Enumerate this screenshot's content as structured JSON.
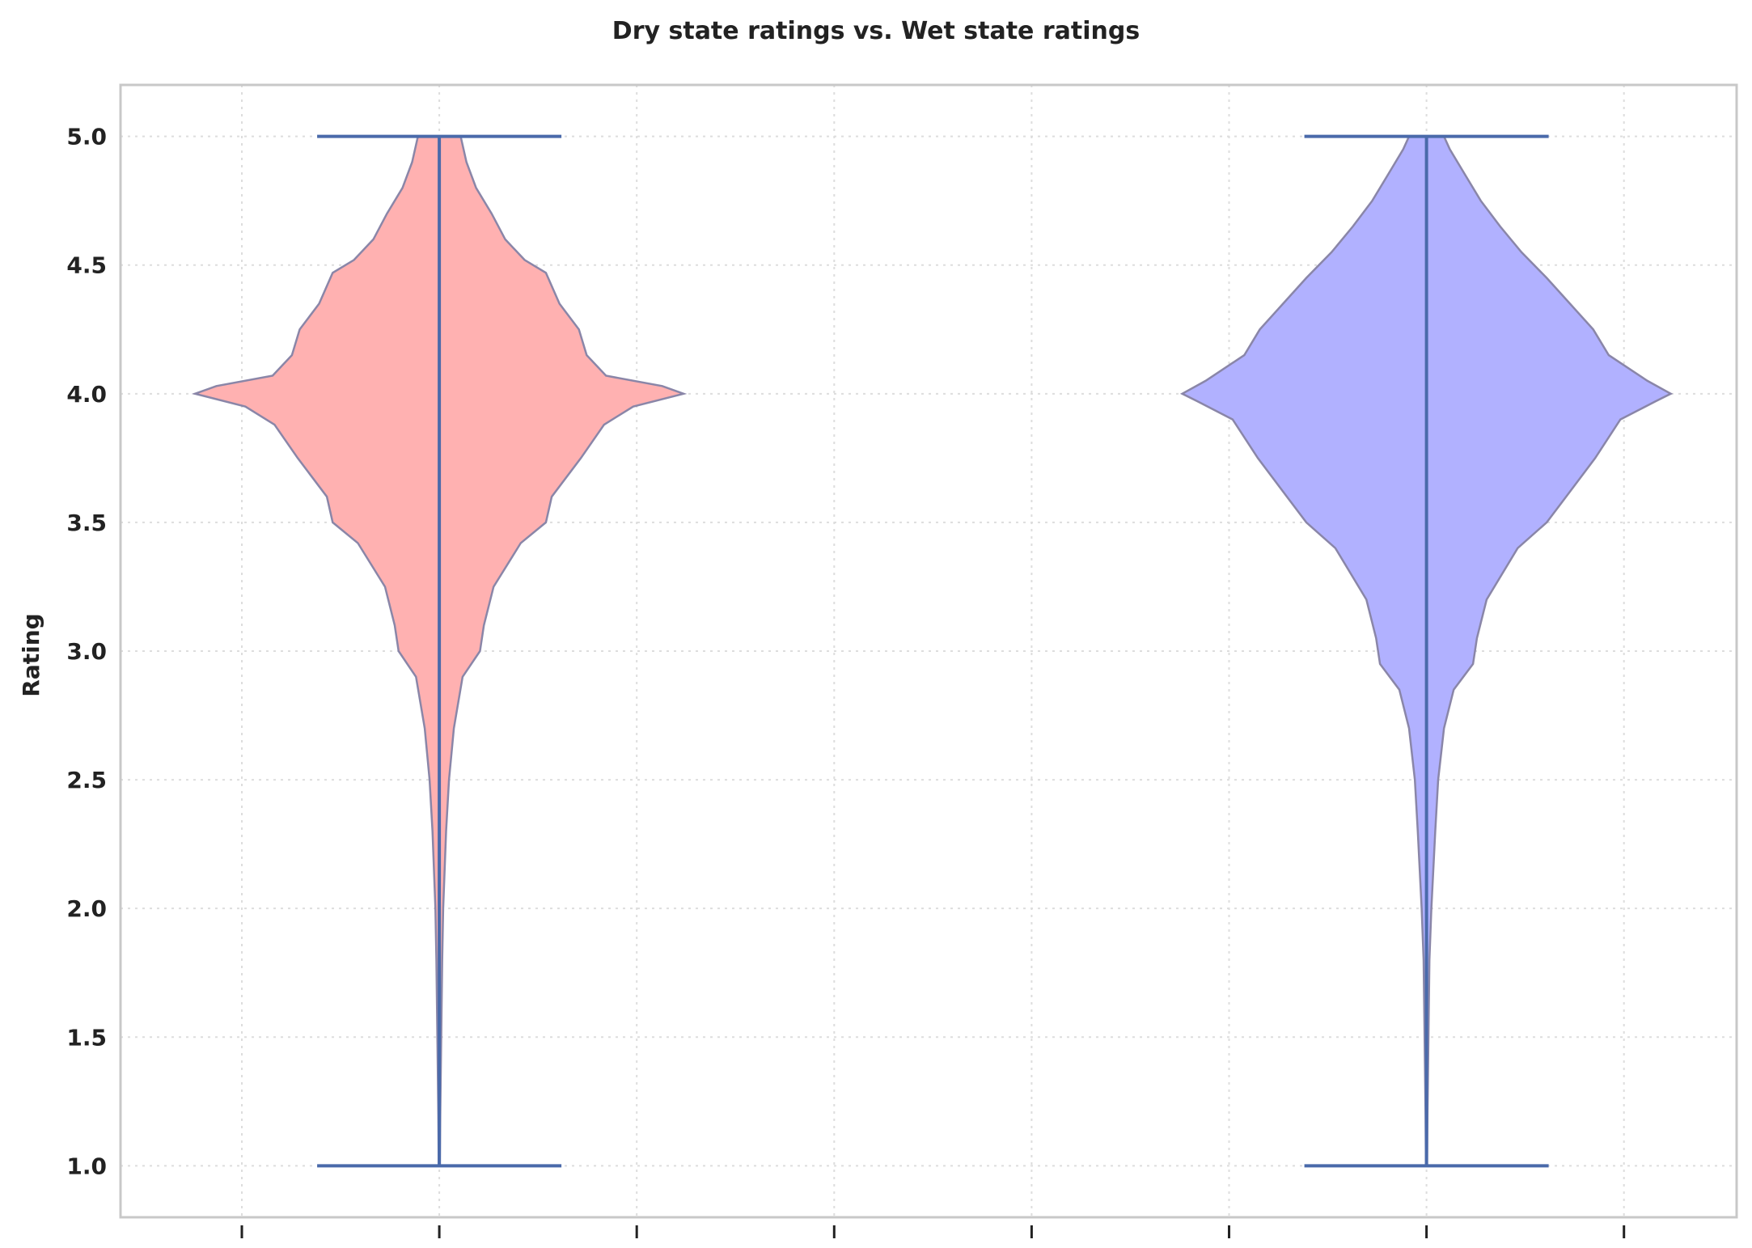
{
  "chart_data": {
    "type": "violin",
    "title": "Dry state ratings vs. Wet state ratings",
    "ylabel": "Rating",
    "xlabel": "",
    "ylim": [
      0.8,
      5.2
    ],
    "yticks": [
      "1.0",
      "1.5",
      "2.0",
      "2.5",
      "3.0",
      "3.5",
      "4.0",
      "4.5",
      "5.0"
    ],
    "grid": true,
    "x_tick_count": 8,
    "series": [
      {
        "position": 2,
        "color": "#ffb1b1",
        "min": 1.0,
        "max": 5.0,
        "density": [
          [
            1.0,
            0.003
          ],
          [
            1.2,
            0.005
          ],
          [
            1.5,
            0.01
          ],
          [
            1.8,
            0.015
          ],
          [
            2.0,
            0.02
          ],
          [
            2.3,
            0.035
          ],
          [
            2.5,
            0.05
          ],
          [
            2.7,
            0.075
          ],
          [
            2.9,
            0.12
          ],
          [
            3.0,
            0.21
          ],
          [
            3.1,
            0.23
          ],
          [
            3.25,
            0.28
          ],
          [
            3.42,
            0.42
          ],
          [
            3.5,
            0.55
          ],
          [
            3.6,
            0.58
          ],
          [
            3.75,
            0.73
          ],
          [
            3.88,
            0.85
          ],
          [
            3.95,
            1.0
          ],
          [
            4.0,
            1.26
          ],
          [
            4.03,
            1.15
          ],
          [
            4.07,
            0.86
          ],
          [
            4.15,
            0.76
          ],
          [
            4.25,
            0.72
          ],
          [
            4.35,
            0.62
          ],
          [
            4.47,
            0.55
          ],
          [
            4.52,
            0.44
          ],
          [
            4.6,
            0.34
          ],
          [
            4.7,
            0.27
          ],
          [
            4.8,
            0.19
          ],
          [
            4.9,
            0.14
          ],
          [
            5.0,
            0.11
          ]
        ]
      },
      {
        "position": 7,
        "color": "#b1b1ff",
        "min": 1.0,
        "max": 5.0,
        "density": [
          [
            1.0,
            0.003
          ],
          [
            1.2,
            0.005
          ],
          [
            1.5,
            0.01
          ],
          [
            1.8,
            0.015
          ],
          [
            2.0,
            0.025
          ],
          [
            2.3,
            0.045
          ],
          [
            2.5,
            0.06
          ],
          [
            2.7,
            0.09
          ],
          [
            2.85,
            0.14
          ],
          [
            2.95,
            0.24
          ],
          [
            3.05,
            0.26
          ],
          [
            3.2,
            0.31
          ],
          [
            3.4,
            0.47
          ],
          [
            3.5,
            0.62
          ],
          [
            3.6,
            0.72
          ],
          [
            3.75,
            0.87
          ],
          [
            3.9,
            1.0
          ],
          [
            3.97,
            1.18
          ],
          [
            4.0,
            1.26
          ],
          [
            4.05,
            1.14
          ],
          [
            4.15,
            0.94
          ],
          [
            4.25,
            0.86
          ],
          [
            4.35,
            0.74
          ],
          [
            4.45,
            0.62
          ],
          [
            4.55,
            0.49
          ],
          [
            4.65,
            0.38
          ],
          [
            4.75,
            0.28
          ],
          [
            4.85,
            0.2
          ],
          [
            4.95,
            0.12
          ],
          [
            5.0,
            0.09
          ]
        ]
      }
    ]
  }
}
